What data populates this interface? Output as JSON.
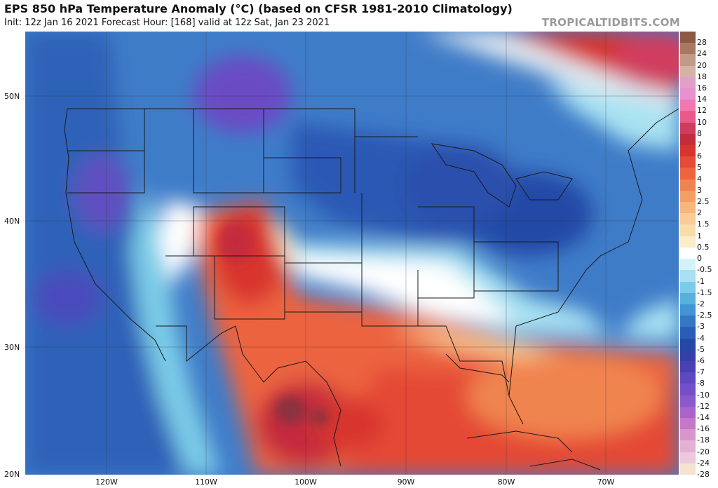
{
  "header": {
    "title": "EPS 850 hPa Temperature Anomaly (°C) (based on CFSR 1981-2010 Climatology)",
    "subtitle": "Init: 12z Jan 16 2021   Forecast Hour: [168]   valid at 12z Sat, Jan 23 2021",
    "watermark": "TROPICALTIDBITS.COM"
  },
  "axes": {
    "lat_labels": [
      "50N",
      "40N",
      "30N",
      "20N"
    ],
    "lon_labels": [
      "120W",
      "110W",
      "100W",
      "90W",
      "80W",
      "70W"
    ]
  },
  "colorbar": {
    "items": [
      {
        "label": "28",
        "color": "#8a5a44"
      },
      {
        "label": "24",
        "color": "#a87860"
      },
      {
        "label": "20",
        "color": "#c29a88"
      },
      {
        "label": "18",
        "color": "#d4b2a6"
      },
      {
        "label": "16",
        "color": "#e0a0c8"
      },
      {
        "label": "14",
        "color": "#e890d0"
      },
      {
        "label": "12",
        "color": "#f07ab0"
      },
      {
        "label": "10",
        "color": "#e85a8a"
      },
      {
        "label": "8",
        "color": "#d03c5e"
      },
      {
        "label": "7",
        "color": "#c42c3c"
      },
      {
        "label": "6",
        "color": "#d8342e"
      },
      {
        "label": "5",
        "color": "#e44a34"
      },
      {
        "label": "4",
        "color": "#ec6440"
      },
      {
        "label": "3",
        "color": "#f08450"
      },
      {
        "label": "2.5",
        "color": "#f49e66"
      },
      {
        "label": "2",
        "color": "#f6b67c"
      },
      {
        "label": "1.5",
        "color": "#f8cc94"
      },
      {
        "label": "1",
        "color": "#fadcaa"
      },
      {
        "label": "0.5",
        "color": "#fcecc8"
      },
      {
        "label": "0",
        "color": "#ffffff"
      },
      {
        "label": "-0.5",
        "color": "#d4f2f8"
      },
      {
        "label": "-1",
        "color": "#a8e2f2"
      },
      {
        "label": "-1.5",
        "color": "#7ccce8"
      },
      {
        "label": "-2",
        "color": "#58b0de"
      },
      {
        "label": "-2.5",
        "color": "#4294d2"
      },
      {
        "label": "-3",
        "color": "#3478c4"
      },
      {
        "label": "-4",
        "color": "#2a5eb6"
      },
      {
        "label": "-5",
        "color": "#2448a6"
      },
      {
        "label": "-6",
        "color": "#3240a8"
      },
      {
        "label": "-7",
        "color": "#4a40b4"
      },
      {
        "label": "-8",
        "color": "#5e48c0"
      },
      {
        "label": "-10",
        "color": "#7450c8"
      },
      {
        "label": "-12",
        "color": "#8a5acc"
      },
      {
        "label": "-14",
        "color": "#a864c8"
      },
      {
        "label": "-16",
        "color": "#c478c8"
      },
      {
        "label": "-18",
        "color": "#d896cc"
      },
      {
        "label": "-20",
        "color": "#e4b0d4"
      },
      {
        "label": "-24",
        "color": "#ecc8dc"
      },
      {
        "label": "-28",
        "color": "#f6e2d0"
      }
    ]
  }
}
